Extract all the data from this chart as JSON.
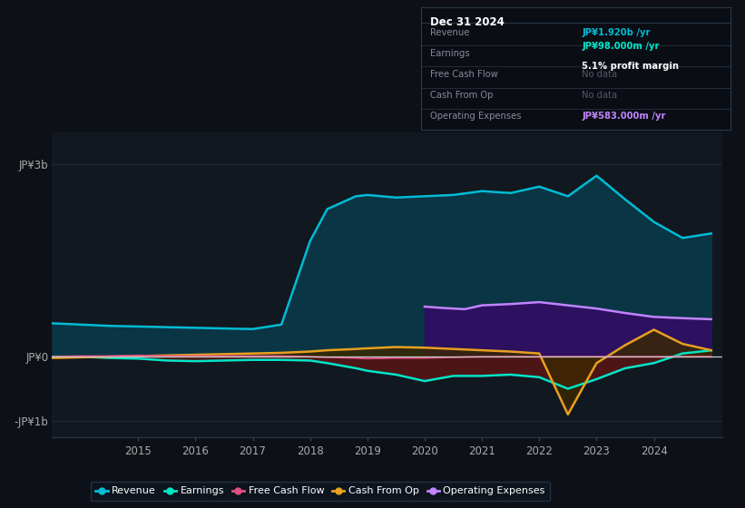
{
  "bg_color": "#0d1117",
  "plot_bg_color": "#111820",
  "title_box_bg": "#0a0e14",
  "title": "Dec 31 2024",
  "info_rows": [
    {
      "label": "Revenue",
      "value": "JP¥1.920b /yr",
      "val_color": "#00bcd4",
      "note": null,
      "note_bold": false
    },
    {
      "label": "Earnings",
      "value": "JP¥98.000m /yr",
      "val_color": "#00e5c8",
      "note": "5.1% profit margin",
      "note_bold": true
    },
    {
      "label": "Free Cash Flow",
      "value": "No data",
      "val_color": "#555566",
      "note": null,
      "note_bold": false
    },
    {
      "label": "Cash From Op",
      "value": "No data",
      "val_color": "#555566",
      "note": null,
      "note_bold": false
    },
    {
      "label": "Operating Expenses",
      "value": "JP¥583.000m /yr",
      "val_color": "#c084fc",
      "note": null,
      "note_bold": false
    }
  ],
  "ylabel_top": "JP¥3b",
  "ylabel_mid": "JP¥0",
  "ylabel_bot": "-JP¥1b",
  "ytick_vals": [
    3.0,
    0.0,
    -1.0
  ],
  "ylim": [
    -1.25,
    3.5
  ],
  "xlim": [
    2013.5,
    2025.2
  ],
  "xticks": [
    2015,
    2016,
    2017,
    2018,
    2019,
    2020,
    2021,
    2022,
    2023,
    2024
  ],
  "years": [
    2013.5,
    2014.0,
    2014.5,
    2015.0,
    2015.5,
    2016.0,
    2016.5,
    2017.0,
    2017.5,
    2018.0,
    2018.3,
    2018.8,
    2019.0,
    2019.5,
    2020.0,
    2020.5,
    2021.0,
    2021.5,
    2022.0,
    2022.5,
    2023.0,
    2023.5,
    2024.0,
    2024.5,
    2025.0
  ],
  "revenue": [
    0.52,
    0.5,
    0.48,
    0.47,
    0.46,
    0.45,
    0.44,
    0.43,
    0.5,
    1.8,
    2.3,
    2.5,
    2.52,
    2.48,
    2.5,
    2.52,
    2.58,
    2.55,
    2.65,
    2.5,
    2.82,
    2.45,
    2.1,
    1.85,
    1.92
  ],
  "earnings": [
    0.0,
    0.0,
    -0.02,
    -0.03,
    -0.06,
    -0.07,
    -0.06,
    -0.05,
    -0.05,
    -0.06,
    -0.1,
    -0.18,
    -0.22,
    -0.28,
    -0.38,
    -0.3,
    -0.3,
    -0.28,
    -0.32,
    -0.5,
    -0.35,
    -0.18,
    -0.1,
    0.05,
    0.098
  ],
  "free_cash_flow": [
    0.0,
    0.01,
    0.01,
    0.02,
    0.01,
    0.01,
    0.01,
    0.01,
    0.01,
    0.0,
    -0.01,
    -0.02,
    -0.03,
    -0.02,
    -0.02,
    -0.01,
    0.0,
    0.0,
    0.0,
    0.0,
    0.0,
    0.0,
    0.0,
    0.0,
    0.0
  ],
  "cash_from_op": [
    -0.02,
    -0.01,
    0.0,
    0.01,
    0.02,
    0.03,
    0.04,
    0.05,
    0.06,
    0.08,
    0.1,
    0.12,
    0.13,
    0.15,
    0.14,
    0.12,
    0.1,
    0.08,
    0.05,
    -0.9,
    -0.1,
    0.18,
    0.42,
    0.2,
    0.1
  ],
  "op_exp_x": [
    2020.0,
    2020.3,
    2020.7,
    2021.0,
    2021.5,
    2022.0,
    2022.5,
    2023.0,
    2023.5,
    2024.0,
    2024.5,
    2025.0
  ],
  "op_exp_y": [
    0.78,
    0.76,
    0.74,
    0.8,
    0.82,
    0.85,
    0.8,
    0.75,
    0.68,
    0.62,
    0.6,
    0.583
  ],
  "revenue_color": "#00bcd4",
  "revenue_fill": "#0a3545",
  "earnings_color": "#00e5c8",
  "earnings_fill": "#5a1515",
  "fcf_color": "#e05080",
  "cash_op_color": "#e8a020",
  "cash_op_fill": "#3a2800",
  "op_exp_color": "#c084fc",
  "op_exp_fill": "#2d1060",
  "zero_line_color": "#cccccc",
  "grid_color": "#1e2d3d",
  "tick_color": "#aaaaaa",
  "legend_labels": [
    "Revenue",
    "Earnings",
    "Free Cash Flow",
    "Cash From Op",
    "Operating Expenses"
  ],
  "legend_colors": [
    "#00bcd4",
    "#00e5c8",
    "#e05080",
    "#e8a020",
    "#c084fc"
  ],
  "legend_bg": "#0d1520",
  "legend_edge": "#2a3a4a"
}
